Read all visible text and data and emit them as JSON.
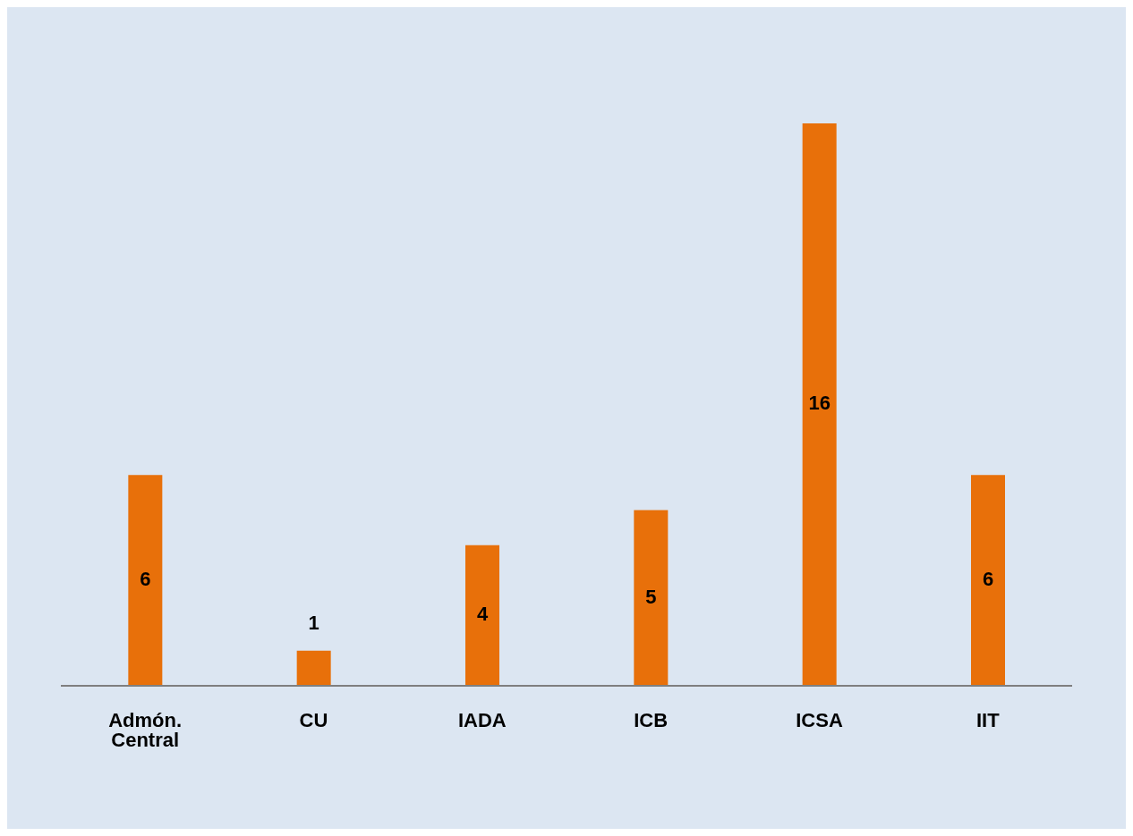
{
  "chart_data": {
    "type": "bar",
    "categories": [
      "Admón. Central",
      "CU",
      "IADA",
      "ICB",
      "ICSA",
      "IIT"
    ],
    "values": [
      6,
      1,
      4,
      5,
      16,
      6
    ],
    "color": "#e8700a",
    "data_labels": true
  }
}
